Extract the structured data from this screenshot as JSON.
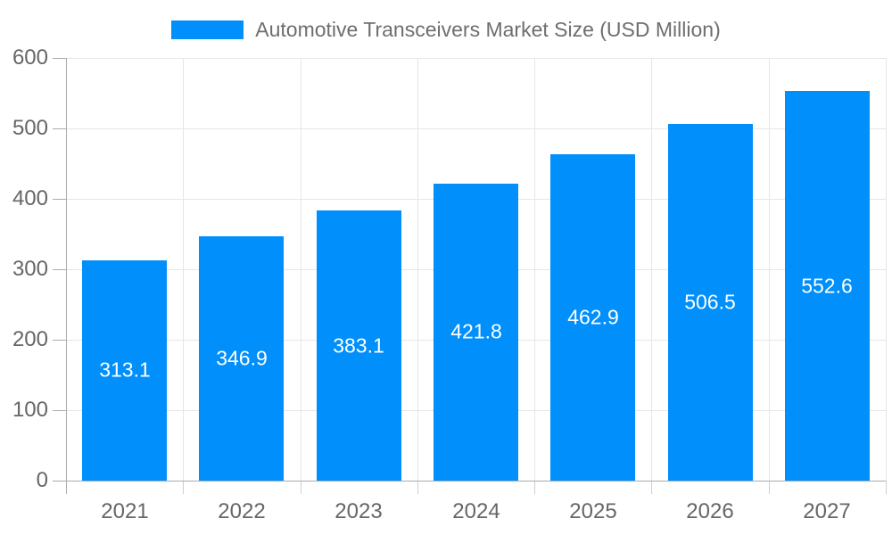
{
  "legend": {
    "label": "Automotive Transceivers Market Size (USD Million)",
    "marker_color": "#008FFB"
  },
  "chart_data": {
    "type": "bar",
    "title": "Automotive Transceivers Market Size (USD Million)",
    "categories": [
      "2021",
      "2022",
      "2023",
      "2024",
      "2025",
      "2026",
      "2027"
    ],
    "series": [
      {
        "name": "Automotive Transceivers Market Size (USD Million)",
        "values": [
          313.1,
          346.9,
          383.1,
          421.8,
          462.9,
          506.5,
          552.6
        ]
      }
    ],
    "data_labels": [
      "313.1",
      "346.9",
      "383.1",
      "421.8",
      "462.9",
      "506.5",
      "552.6"
    ],
    "xlabel": "",
    "ylabel": "",
    "ylim": [
      0,
      600
    ],
    "yticks": [
      0,
      100,
      200,
      300,
      400,
      500,
      600
    ],
    "ytick_labels": [
      "0",
      "100",
      "200",
      "300",
      "400",
      "500",
      "600"
    ],
    "grid": true,
    "legend_position": "top",
    "colors": {
      "bar": "#008FFB",
      "bar_label": "#ffffff",
      "axis_label": "#666666",
      "legend_label": "#6e6e6e",
      "gridline": "#e6e6e6",
      "axis_line": "#ababab",
      "category_tick": "#d0d0d0",
      "background": "#ffffff"
    }
  }
}
